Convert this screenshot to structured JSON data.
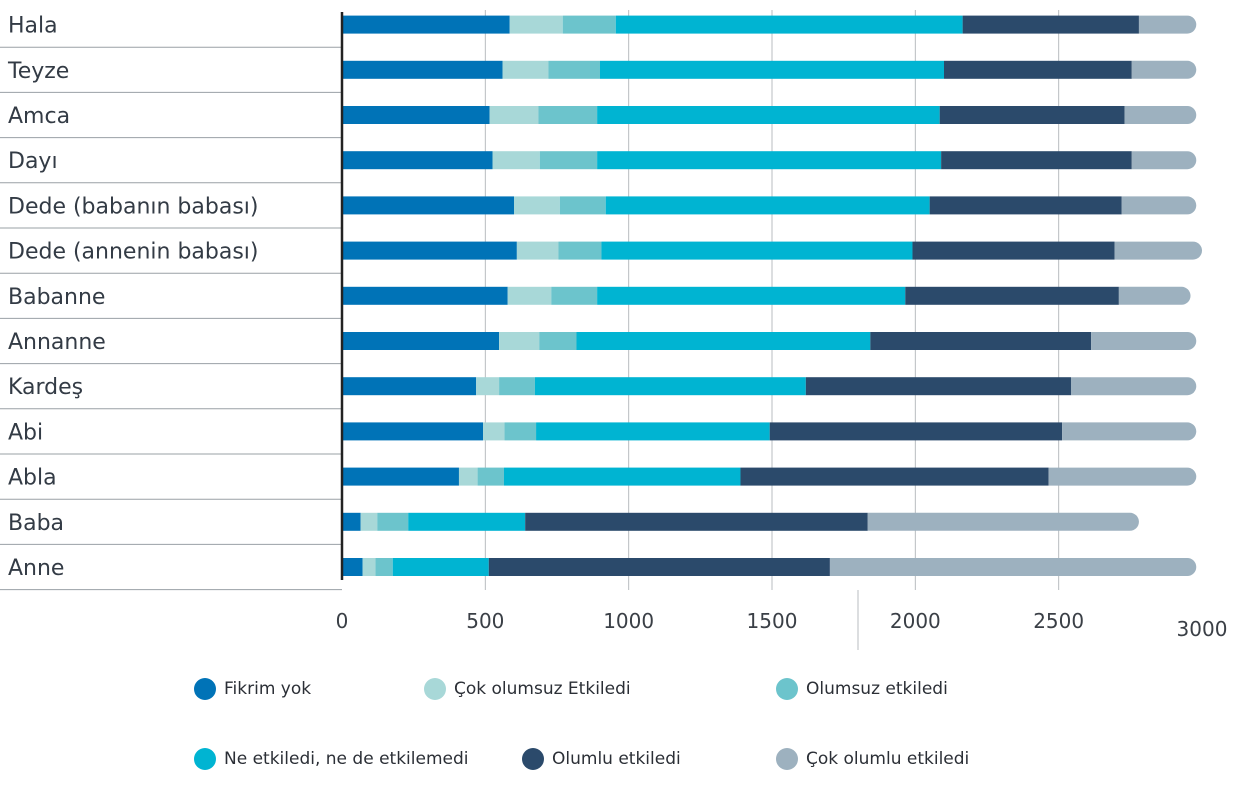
{
  "chart_data": {
    "type": "bar",
    "orientation": "horizontal",
    "stacked": true,
    "categories": [
      "Hala",
      "Teyze",
      "Amca",
      "Dayı",
      "Dede (babanın babası)",
      "Dede (annenin babası)",
      "Babanne",
      "Annanne",
      "Kardeş",
      "Abi",
      "Abla",
      "Baba",
      "Anne"
    ],
    "series": [
      {
        "name": "Fikrim yok",
        "color": "#0073b7",
        "values": [
          585,
          560,
          515,
          525,
          600,
          610,
          578,
          548,
          468,
          492,
          408,
          65,
          72
        ]
      },
      {
        "name": "Çok olumsuz Etkiledi",
        "color": "#a8d8d8",
        "values": [
          185,
          160,
          170,
          165,
          160,
          145,
          152,
          140,
          80,
          75,
          65,
          58,
          45
        ]
      },
      {
        "name": "Olumsuz etkiledi",
        "color": "#6cc4cc",
        "values": [
          185,
          180,
          205,
          200,
          160,
          150,
          160,
          130,
          125,
          110,
          92,
          108,
          60
        ]
      },
      {
        "name": "Ne etkiledi, ne de etkilemedi",
        "color": "#00b4d2",
        "values": [
          1210,
          1200,
          1195,
          1200,
          1130,
          1085,
          1075,
          1025,
          945,
          815,
          825,
          408,
          335
        ]
      },
      {
        "name": "Olumlu etkiledi",
        "color": "#2b4a6b",
        "values": [
          615,
          655,
          645,
          665,
          670,
          705,
          745,
          770,
          925,
          1020,
          1075,
          1195,
          1190
        ]
      },
      {
        "name": "Çok olumlu etkiledi",
        "color": "#9db1bf",
        "values": [
          200,
          225,
          250,
          225,
          260,
          305,
          250,
          367,
          437,
          468,
          515,
          946,
          1278
        ]
      }
    ],
    "xlim": [
      0,
      3000
    ],
    "xticks": [
      "0",
      "500",
      "1000",
      "1500",
      "2000",
      "2500",
      "3000"
    ],
    "grid": true,
    "legend": "bottom"
  }
}
